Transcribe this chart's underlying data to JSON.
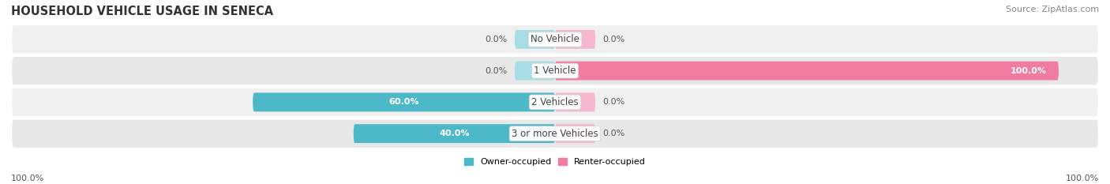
{
  "title": "HOUSEHOLD VEHICLE USAGE IN SENECA",
  "source": "Source: ZipAtlas.com",
  "categories": [
    "No Vehicle",
    "1 Vehicle",
    "2 Vehicles",
    "3 or more Vehicles"
  ],
  "owner_values": [
    0.0,
    0.0,
    60.0,
    40.0
  ],
  "renter_values": [
    0.0,
    100.0,
    0.0,
    0.0
  ],
  "owner_color": "#4db8c8",
  "renter_color": "#f07ca0",
  "owner_color_light": "#a8dde5",
  "renter_color_light": "#f5b8ce",
  "owner_label": "Owner-occupied",
  "renter_label": "Renter-occupied",
  "row_bg_colors": [
    "#f0f0f0",
    "#e8e8e8"
  ],
  "max_value": 100.0,
  "title_fontsize": 10.5,
  "source_fontsize": 8,
  "label_fontsize": 8,
  "bottom_left_label": "100.0%",
  "bottom_right_label": "100.0%",
  "stub_size": 8.0
}
